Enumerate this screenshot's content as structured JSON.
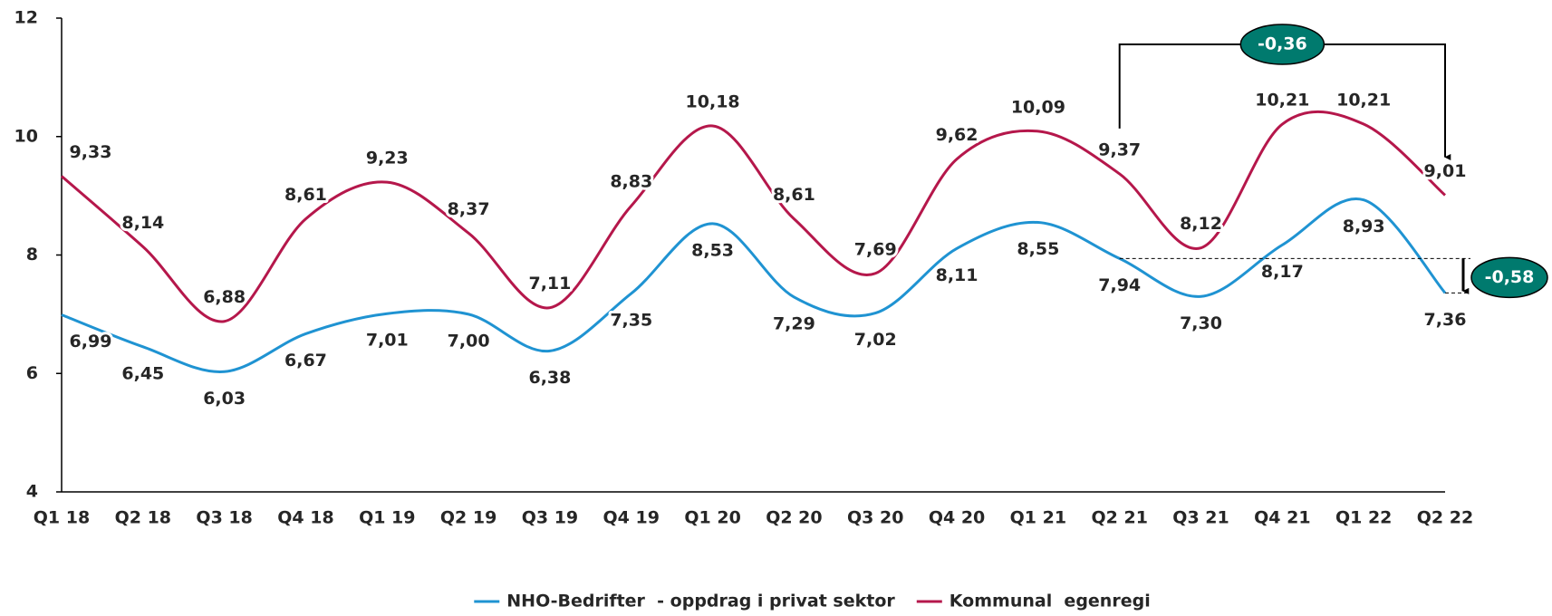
{
  "chart_data": {
    "type": "line",
    "categories": [
      "Q1 18",
      "Q2 18",
      "Q3 18",
      "Q4 18",
      "Q1 19",
      "Q2 19",
      "Q3 19",
      "Q4 19",
      "Q1 20",
      "Q2 20",
      "Q3 20",
      "Q4 20",
      "Q1 21",
      "Q2 21",
      "Q3 21",
      "Q4 21",
      "Q1 22",
      "Q2 22"
    ],
    "series": [
      {
        "name": "NHO-Bedrifter  - oppdrag i privat sektor",
        "color": "#1f93d2",
        "values": [
          6.99,
          6.45,
          6.03,
          6.67,
          7.01,
          7.0,
          6.38,
          7.35,
          8.53,
          7.29,
          7.02,
          8.11,
          8.55,
          7.94,
          7.3,
          8.17,
          8.93,
          7.36
        ],
        "value_labels": [
          "6,99",
          "6,45",
          "6,03",
          "6,67",
          "7,01",
          "7,00",
          "6,38",
          "7,35",
          "8,53",
          "7,29",
          "7,02",
          "8,11",
          "8,55",
          "7,94",
          "7,30",
          "8,17",
          "8,93",
          "7,36"
        ]
      },
      {
        "name": "Kommunal  egenregi",
        "color": "#b5174b",
        "values": [
          9.33,
          8.14,
          6.88,
          8.61,
          9.23,
          8.37,
          7.11,
          8.83,
          10.18,
          8.61,
          7.69,
          9.62,
          10.09,
          9.37,
          8.12,
          10.21,
          10.21,
          9.01
        ],
        "value_labels": [
          "9,33",
          "8,14",
          "6,88",
          "8,61",
          "9,23",
          "8,37",
          "7,11",
          "8,83",
          "10,18",
          "8,61",
          "7,69",
          "9,62",
          "10,09",
          "9,37",
          "8,12",
          "10,21",
          "10,21",
          "9,01"
        ]
      }
    ],
    "ylim": [
      4,
      12
    ],
    "yticks": [
      4,
      6,
      8,
      10,
      12
    ],
    "grid": false,
    "annotations": [
      "-0,36",
      "-0,58"
    ],
    "annotation_color": "#007a6e"
  }
}
